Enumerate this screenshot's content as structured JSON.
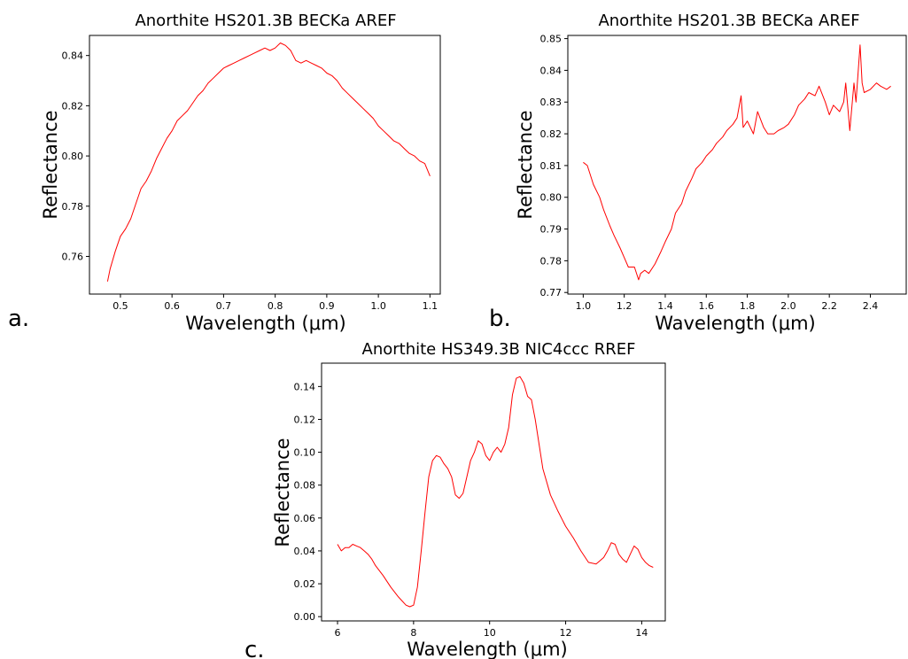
{
  "panel_labels": [
    "a.",
    "b.",
    "c."
  ],
  "chart_data": [
    {
      "type": "line",
      "title": "Anorthite HS201.3B BECKa AREF",
      "xlabel": "Wavelength (μm)",
      "ylabel": "Reflectance",
      "xlim": [
        0.44,
        1.12
      ],
      "ylim": [
        0.745,
        0.848
      ],
      "xticks": [
        "0.5",
        "0.6",
        "0.7",
        "0.8",
        "0.9",
        "1.0",
        "1.1"
      ],
      "yticks": [
        "0.76",
        "0.78",
        "0.80",
        "0.82",
        "0.84"
      ],
      "grid": false,
      "series": [
        {
          "color": "#ff0000",
          "x": [
            0.475,
            0.48,
            0.49,
            0.5,
            0.51,
            0.52,
            0.53,
            0.54,
            0.55,
            0.56,
            0.57,
            0.58,
            0.59,
            0.6,
            0.61,
            0.62,
            0.63,
            0.64,
            0.65,
            0.66,
            0.67,
            0.68,
            0.69,
            0.7,
            0.71,
            0.72,
            0.73,
            0.74,
            0.75,
            0.76,
            0.77,
            0.78,
            0.79,
            0.8,
            0.81,
            0.82,
            0.83,
            0.84,
            0.85,
            0.86,
            0.87,
            0.88,
            0.89,
            0.9,
            0.91,
            0.92,
            0.93,
            0.94,
            0.95,
            0.96,
            0.97,
            0.98,
            0.99,
            1.0,
            1.01,
            1.02,
            1.03,
            1.04,
            1.05,
            1.06,
            1.07,
            1.08,
            1.09,
            1.1
          ],
          "y": [
            0.75,
            0.755,
            0.762,
            0.768,
            0.771,
            0.775,
            0.781,
            0.787,
            0.79,
            0.794,
            0.799,
            0.803,
            0.807,
            0.81,
            0.814,
            0.816,
            0.818,
            0.821,
            0.824,
            0.826,
            0.829,
            0.831,
            0.833,
            0.835,
            0.836,
            0.837,
            0.838,
            0.839,
            0.84,
            0.841,
            0.842,
            0.843,
            0.842,
            0.843,
            0.845,
            0.844,
            0.842,
            0.838,
            0.837,
            0.838,
            0.837,
            0.836,
            0.835,
            0.833,
            0.832,
            0.83,
            0.827,
            0.825,
            0.823,
            0.821,
            0.819,
            0.817,
            0.815,
            0.812,
            0.81,
            0.808,
            0.806,
            0.805,
            0.803,
            0.801,
            0.8,
            0.798,
            0.797,
            0.792
          ]
        }
      ]
    },
    {
      "type": "line",
      "title": "Anorthite HS201.3B BECKa AREF",
      "xlabel": "Wavelength (μm)",
      "ylabel": "Reflectance",
      "xlim": [
        0.925,
        2.575
      ],
      "ylim": [
        0.7695,
        0.851
      ],
      "xticks": [
        "1.0",
        "1.2",
        "1.4",
        "1.6",
        "1.8",
        "2.0",
        "2.2",
        "2.4"
      ],
      "yticks": [
        "0.77",
        "0.78",
        "0.79",
        "0.80",
        "0.81",
        "0.82",
        "0.83",
        "0.84",
        "0.85"
      ],
      "grid": false,
      "series": [
        {
          "color": "#ff0000",
          "x": [
            1.0,
            1.02,
            1.05,
            1.08,
            1.1,
            1.13,
            1.15,
            1.18,
            1.2,
            1.22,
            1.25,
            1.27,
            1.28,
            1.3,
            1.32,
            1.35,
            1.38,
            1.4,
            1.43,
            1.45,
            1.48,
            1.5,
            1.53,
            1.55,
            1.58,
            1.6,
            1.63,
            1.65,
            1.68,
            1.7,
            1.73,
            1.75,
            1.77,
            1.78,
            1.8,
            1.83,
            1.85,
            1.88,
            1.9,
            1.93,
            1.95,
            1.98,
            2.0,
            2.03,
            2.05,
            2.08,
            2.1,
            2.13,
            2.15,
            2.18,
            2.2,
            2.22,
            2.25,
            2.27,
            2.28,
            2.3,
            2.32,
            2.33,
            2.35,
            2.36,
            2.37,
            2.4,
            2.43,
            2.45,
            2.48,
            2.5
          ],
          "y": [
            0.811,
            0.81,
            0.804,
            0.8,
            0.796,
            0.791,
            0.788,
            0.784,
            0.781,
            0.778,
            0.778,
            0.774,
            0.776,
            0.777,
            0.776,
            0.779,
            0.783,
            0.786,
            0.79,
            0.795,
            0.798,
            0.802,
            0.806,
            0.809,
            0.811,
            0.813,
            0.815,
            0.817,
            0.819,
            0.821,
            0.823,
            0.825,
            0.832,
            0.822,
            0.824,
            0.82,
            0.827,
            0.822,
            0.82,
            0.82,
            0.821,
            0.822,
            0.823,
            0.826,
            0.829,
            0.831,
            0.833,
            0.832,
            0.835,
            0.83,
            0.826,
            0.829,
            0.827,
            0.83,
            0.836,
            0.821,
            0.836,
            0.83,
            0.848,
            0.836,
            0.833,
            0.834,
            0.836,
            0.835,
            0.834,
            0.835
          ]
        }
      ]
    },
    {
      "type": "line",
      "title": "Anorthite HS349.3B NIC4ccc RREF",
      "xlabel": "Wavelength (μm)",
      "ylabel": "Reflectance",
      "xlim": [
        5.58,
        14.62
      ],
      "ylim": [
        -0.0026,
        0.1542
      ],
      "xticks": [
        "6",
        "8",
        "10",
        "12",
        "14"
      ],
      "yticks": [
        "0.00",
        "0.02",
        "0.04",
        "0.06",
        "0.08",
        "0.10",
        "0.12",
        "0.14"
      ],
      "grid": false,
      "series": [
        {
          "color": "#ff0000",
          "x": [
            6.0,
            6.1,
            6.2,
            6.3,
            6.4,
            6.5,
            6.6,
            6.7,
            6.8,
            6.9,
            7.0,
            7.2,
            7.4,
            7.6,
            7.8,
            7.9,
            8.0,
            8.1,
            8.2,
            8.3,
            8.4,
            8.5,
            8.6,
            8.7,
            8.8,
            8.9,
            9.0,
            9.1,
            9.2,
            9.3,
            9.4,
            9.5,
            9.6,
            9.7,
            9.8,
            9.9,
            10.0,
            10.1,
            10.2,
            10.3,
            10.4,
            10.5,
            10.6,
            10.7,
            10.8,
            10.9,
            11.0,
            11.1,
            11.2,
            11.4,
            11.6,
            11.8,
            12.0,
            12.2,
            12.4,
            12.6,
            12.8,
            13.0,
            13.1,
            13.2,
            13.3,
            13.4,
            13.5,
            13.6,
            13.7,
            13.8,
            13.9,
            14.0,
            14.1,
            14.2,
            14.3
          ],
          "y": [
            0.044,
            0.04,
            0.042,
            0.042,
            0.044,
            0.043,
            0.042,
            0.04,
            0.038,
            0.035,
            0.031,
            0.025,
            0.018,
            0.012,
            0.007,
            0.006,
            0.007,
            0.018,
            0.04,
            0.063,
            0.085,
            0.095,
            0.098,
            0.097,
            0.093,
            0.09,
            0.085,
            0.074,
            0.072,
            0.075,
            0.085,
            0.095,
            0.1,
            0.107,
            0.105,
            0.098,
            0.095,
            0.1,
            0.103,
            0.1,
            0.105,
            0.115,
            0.135,
            0.145,
            0.146,
            0.142,
            0.134,
            0.132,
            0.12,
            0.09,
            0.074,
            0.064,
            0.055,
            0.048,
            0.04,
            0.033,
            0.032,
            0.036,
            0.04,
            0.045,
            0.044,
            0.038,
            0.035,
            0.033,
            0.038,
            0.043,
            0.041,
            0.036,
            0.033,
            0.031,
            0.03
          ]
        }
      ]
    }
  ]
}
